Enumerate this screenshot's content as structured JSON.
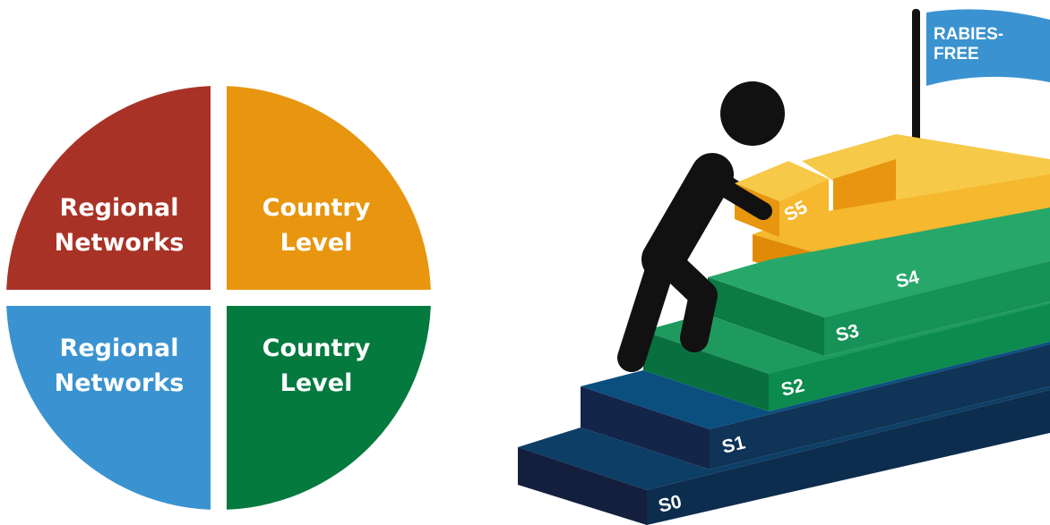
{
  "quadrants": [
    {
      "lines": [
        "Regional",
        "Networks"
      ]
    },
    {
      "lines": [
        "Country",
        "Level"
      ]
    },
    {
      "lines": [
        "Regional",
        "Networks"
      ]
    },
    {
      "lines": [
        "Country",
        "Level"
      ]
    }
  ],
  "flag": {
    "lines": [
      "RABIES-",
      "FREE"
    ]
  },
  "steps": [
    "S0",
    "S1",
    "S2",
    "S3",
    "S4",
    "S5"
  ]
}
